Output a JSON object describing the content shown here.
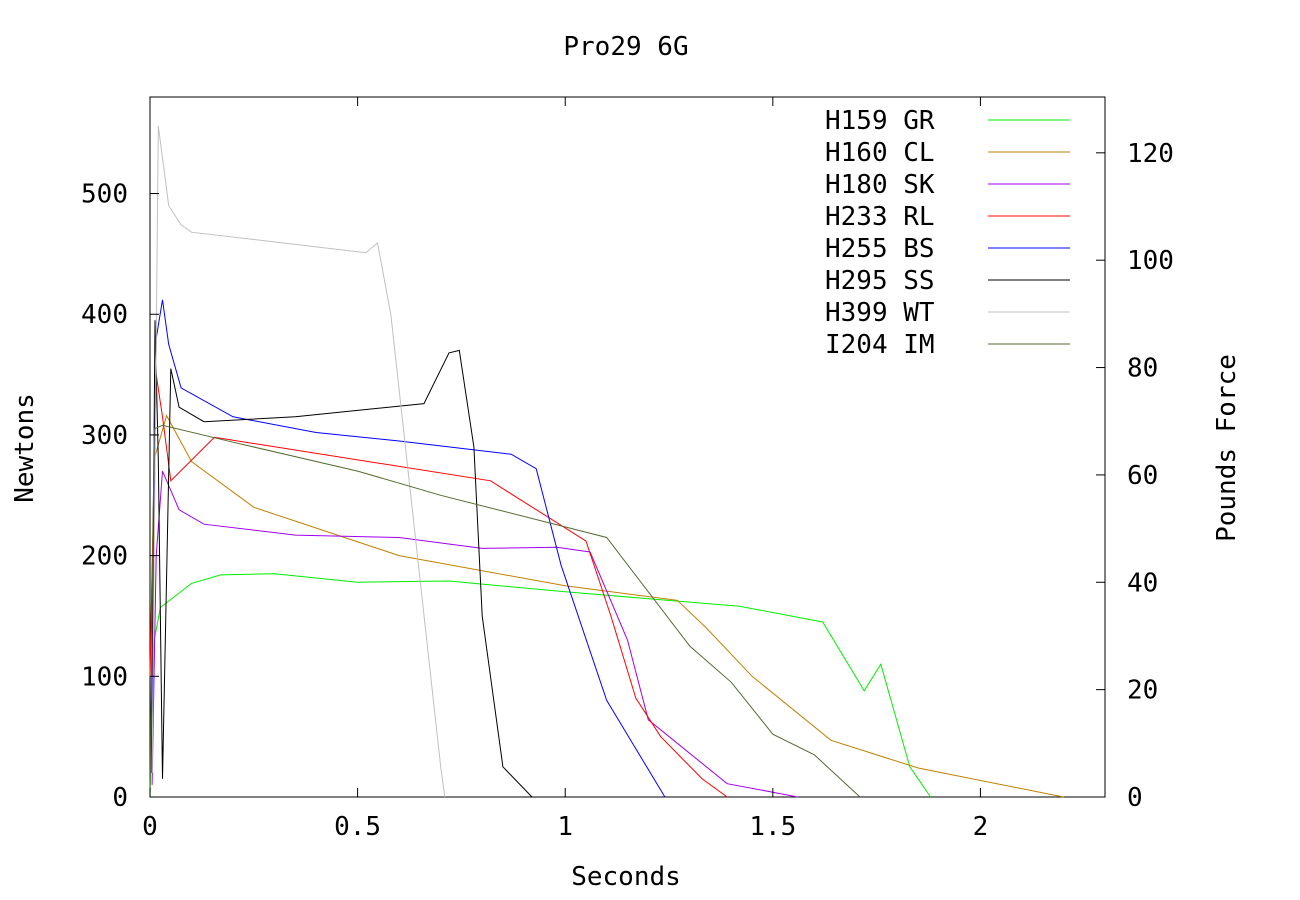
{
  "chart_data": {
    "type": "line",
    "title": "Pro29 6G",
    "xlabel": "Seconds",
    "ylabel": "Newtons",
    "y2label": "Pounds Force",
    "xlim": [
      0,
      2.3
    ],
    "ylim": [
      0,
      580
    ],
    "y2lim": [
      0,
      130.4
    ],
    "xticks": [
      0,
      0.5,
      1,
      1.5,
      2
    ],
    "xtick_labels": [
      "0",
      "0.5",
      "1",
      "1.5",
      "2"
    ],
    "yticks": [
      0,
      100,
      200,
      300,
      400,
      500
    ],
    "ytick_labels": [
      "0",
      "100",
      "200",
      "300",
      "400",
      "500"
    ],
    "y2ticks": [
      0,
      20,
      40,
      60,
      80,
      100,
      120
    ],
    "y2tick_labels": [
      "0",
      "20",
      "40",
      "60",
      "80",
      "100",
      "120"
    ],
    "grid": false,
    "legend_position": "top-right",
    "series": [
      {
        "name": "H159 GR",
        "color": "#00ee00",
        "x": [
          0,
          0.01,
          0.025,
          0.1,
          0.17,
          0.3,
          0.5,
          0.72,
          1.0,
          1.42,
          1.62,
          1.72,
          1.76,
          1.83,
          1.88
        ],
        "y": [
          0,
          130,
          157,
          177,
          184,
          185,
          178,
          179,
          170,
          158,
          145,
          88,
          110,
          25,
          0
        ]
      },
      {
        "name": "H160 CL",
        "color": "#c08000",
        "x": [
          0,
          0.01,
          0.04,
          0.1,
          0.25,
          0.6,
          1.0,
          1.27,
          1.34,
          1.45,
          1.64,
          1.85,
          2.2
        ],
        "y": [
          100,
          280,
          316,
          278,
          240,
          200,
          175,
          163,
          140,
          100,
          47,
          24,
          0
        ]
      },
      {
        "name": "H180 SK",
        "color": "#a000ee",
        "x": [
          0.005,
          0.015,
          0.03,
          0.07,
          0.13,
          0.35,
          0.6,
          0.8,
          0.98,
          1.06,
          1.15,
          1.2,
          1.39,
          1.5,
          1.56
        ],
        "y": [
          10,
          200,
          270,
          238,
          226,
          217,
          215,
          206,
          207,
          203,
          130,
          64,
          11,
          4,
          0
        ]
      },
      {
        "name": "H233 RL",
        "color": "#ff0000",
        "x": [
          0,
          0.015,
          0.03,
          0.05,
          0.155,
          0.82,
          1.05,
          1.11,
          1.17,
          1.23,
          1.33,
          1.39
        ],
        "y": [
          100,
          350,
          315,
          262,
          298,
          262,
          212,
          150,
          82,
          50,
          15,
          0
        ]
      },
      {
        "name": "H255 BS",
        "color": "#0000ff",
        "x": [
          0.003,
          0.015,
          0.03,
          0.045,
          0.075,
          0.2,
          0.4,
          0.6,
          0.87,
          0.93,
          0.99,
          1.1,
          1.24
        ],
        "y": [
          20,
          380,
          412,
          375,
          339,
          315,
          302,
          295,
          284,
          272,
          192,
          80,
          0
        ]
      },
      {
        "name": "H295 SS",
        "color": "#000000",
        "x": [
          0.005,
          0.012,
          0.02,
          0.03,
          0.05,
          0.07,
          0.13,
          0.35,
          0.66,
          0.72,
          0.745,
          0.78,
          0.8,
          0.85,
          0.92
        ],
        "y": [
          100,
          395,
          280,
          15,
          355,
          323,
          311,
          315,
          326,
          368,
          370,
          290,
          150,
          25,
          0
        ]
      },
      {
        "name": "H399 WT",
        "color": "#c0c0c0",
        "x": [
          0.005,
          0.02,
          0.045,
          0.075,
          0.1,
          0.52,
          0.548,
          0.58,
          0.7,
          0.71
        ],
        "y": [
          20,
          556,
          490,
          474,
          468,
          451,
          459,
          400,
          25,
          0
        ]
      },
      {
        "name": "I204 IM",
        "color": "#556b2f",
        "x": [
          0,
          0.01,
          0.03,
          0.2,
          0.5,
          0.7,
          1.1,
          1.3,
          1.4,
          1.5,
          1.6,
          1.71
        ],
        "y": [
          0,
          305,
          308,
          294,
          270,
          250,
          215,
          125,
          95,
          52,
          35,
          0
        ]
      }
    ]
  }
}
